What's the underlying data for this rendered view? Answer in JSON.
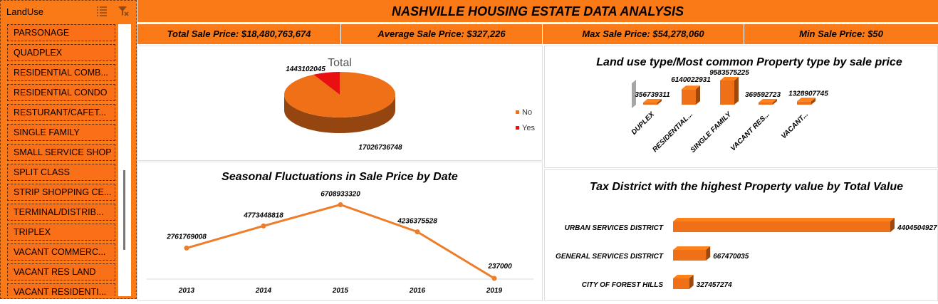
{
  "slicer": {
    "title": "LandUse",
    "items": [
      "PARSONAGE",
      "QUADPLEX",
      "RESIDENTIAL COMB...",
      "RESIDENTIAL CONDO",
      "RESTURANT/CAFET...",
      "SINGLE FAMILY",
      "SMALL SERVICE SHOP",
      "SPLIT CLASS",
      "STRIP SHOPPING CE...",
      "TERMINAL/DISTRIB...",
      "TRIPLEX",
      "VACANT COMMERC...",
      "VACANT RES LAND",
      "VACANT RESIDENTI..."
    ]
  },
  "header": {
    "title": "NASHVILLE HOUSING ESTATE DATA ANALYSIS"
  },
  "kpis": [
    "Total Sale Price: $18,480,763,674",
    "Average Sale Price: $327,226",
    "Max Sale Price: $54,278,060",
    "Min Sale Price: $50"
  ],
  "colors": {
    "accent": "#fa7a18",
    "bar": "#f07018",
    "pie_yes": "#e81010",
    "line": "#ee7d2a"
  },
  "chart_data": [
    {
      "id": "pie",
      "type": "pie",
      "title": "Total",
      "categories": [
        "No",
        "Yes"
      ],
      "values": [
        17026736748,
        1443102045
      ],
      "labels": [
        "17026736748",
        "1443102045"
      ],
      "legend": [
        "No",
        "Yes"
      ],
      "legend_position": "right"
    },
    {
      "id": "landuse",
      "type": "bar",
      "title": "Land use type/Most common Property type by sale price",
      "categories": [
        "DUPLEX",
        "RESIDENTIAL...",
        "SINGLE FAMILY",
        "VACANT RES...",
        "VACANT..."
      ],
      "values": [
        356739311,
        6140022931,
        9583575225,
        369592723,
        1328907745
      ],
      "labels": [
        "356739311",
        "6140022931",
        "9583575225",
        "369592723",
        "1328907745"
      ]
    },
    {
      "id": "seasonal",
      "type": "line",
      "title": "Seasonal Fluctuations in Sale Price by Date",
      "categories": [
        "2013",
        "2014",
        "2015",
        "2016",
        "2019"
      ],
      "values": [
        2761769008,
        4773448818,
        6708933320,
        4236375528,
        237000
      ],
      "labels": [
        "2761769008",
        "4773448818",
        "6708933320",
        "4236375528",
        "237000"
      ]
    },
    {
      "id": "tax",
      "type": "bar",
      "title": "Tax District with the highest Property value by Total Value",
      "categories": [
        "URBAN SERVICES DISTRICT",
        "GENERAL SERVICES DISTRICT",
        "CITY OF FOREST HILLS"
      ],
      "values": [
        4404504927,
        667470035,
        327457274
      ],
      "labels": [
        "4404504927",
        "667470035",
        "327457274"
      ]
    }
  ]
}
